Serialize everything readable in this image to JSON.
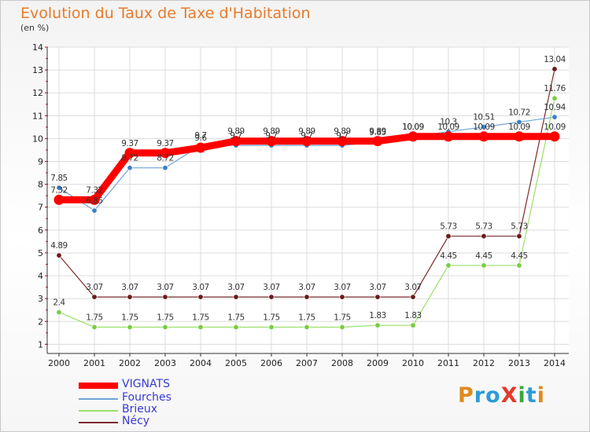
{
  "chart_data": {
    "type": "line",
    "title": "Evolution du Taux de Taxe d'Habitation",
    "subtitle": "(en %)",
    "xlabel": "",
    "ylabel": "",
    "categories": [
      "2000",
      "2001",
      "2002",
      "2003",
      "2004",
      "2005",
      "2006",
      "2007",
      "2008",
      "2009",
      "2010",
      "2011",
      "2012",
      "2013",
      "2014"
    ],
    "yticks": [
      "1",
      "2",
      "3",
      "4",
      "5",
      "6",
      "7",
      "8",
      "9",
      "10",
      "11",
      "12",
      "13",
      "14"
    ],
    "ylim": [
      0.6,
      14
    ],
    "grid": true,
    "legend_position": "bottom-left",
    "series": [
      {
        "name": "VIGNATS",
        "color": "#ff0000",
        "values": [
          7.32,
          7.32,
          9.37,
          9.37,
          9.6,
          9.89,
          9.89,
          9.89,
          9.89,
          9.89,
          10.09,
          10.09,
          10.09,
          10.09,
          10.09
        ],
        "labels": [
          "7.32",
          "7.32",
          "9.37",
          "9.37",
          "9.6",
          "9.89",
          "9.89",
          "9.89",
          "9.89",
          "9.89",
          "10.09",
          "10.09",
          "10.09",
          "10.09",
          "10.09"
        ]
      },
      {
        "name": "Fourches",
        "color": "#6fa5d8",
        "values": [
          7.85,
          6.85,
          8.72,
          8.72,
          9.7,
          9.7,
          9.7,
          9.7,
          9.7,
          9.85,
          10.09,
          10.3,
          10.51,
          10.72,
          10.94
        ],
        "labels": [
          "7.85",
          "6.85",
          "8.72",
          "8.72",
          "9.7",
          "9.7",
          "9.7",
          "9.7",
          "9.7",
          "9.85",
          "10.09",
          "10.3",
          "10.51",
          "10.72",
          "10.94"
        ]
      },
      {
        "name": "Brieux",
        "color": "#99e06a",
        "values": [
          2.4,
          1.75,
          1.75,
          1.75,
          1.75,
          1.75,
          1.75,
          1.75,
          1.75,
          1.83,
          1.83,
          4.45,
          4.45,
          4.45,
          11.76
        ],
        "labels": [
          "2.4",
          "1.75",
          "1.75",
          "1.75",
          "1.75",
          "1.75",
          "1.75",
          "1.75",
          "1.75",
          "1.83",
          "1.83",
          "4.45",
          "4.45",
          "4.45",
          "11.76"
        ]
      },
      {
        "name": "Nécy",
        "color": "#7a2a2a",
        "values": [
          4.89,
          3.07,
          3.07,
          3.07,
          3.07,
          3.07,
          3.07,
          3.07,
          3.07,
          3.07,
          3.07,
          5.73,
          5.73,
          5.73,
          13.04
        ],
        "labels": [
          "4.89",
          "3.07",
          "3.07",
          "3.07",
          "3.07",
          "3.07",
          "3.07",
          "3.07",
          "3.07",
          "3.07",
          "3.07",
          "5.73",
          "5.73",
          "5.73",
          "13.04"
        ]
      }
    ]
  },
  "logo": {
    "text": "ProXiti",
    "letters": [
      "P",
      "r",
      "o",
      "X",
      "i",
      "t",
      "i"
    ]
  }
}
